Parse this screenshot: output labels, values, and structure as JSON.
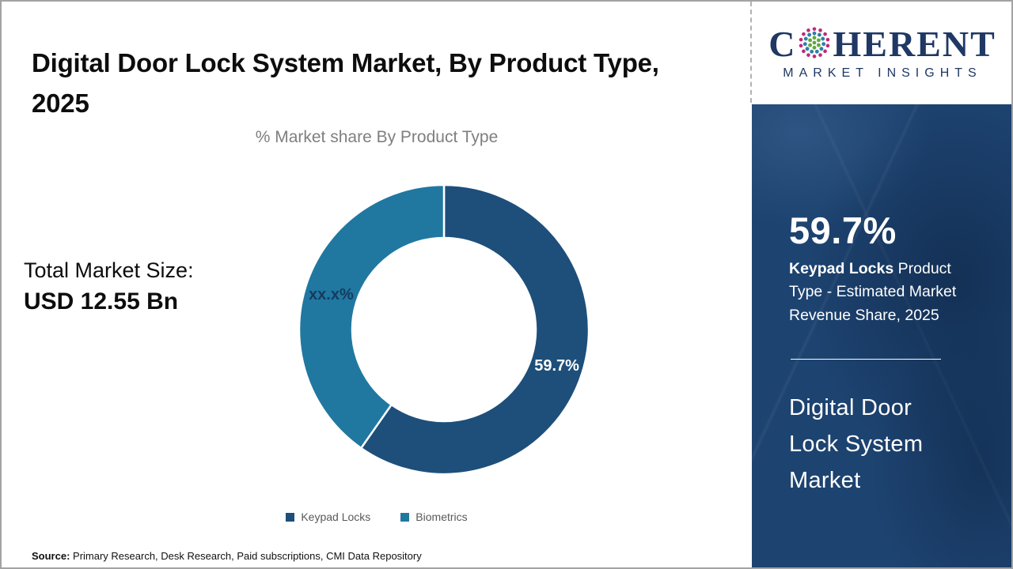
{
  "page": {
    "title": "Digital Door Lock System Market, By Product Type, 2025",
    "source_label": "Source:",
    "source_text": " Primary Research, Desk Research, Paid subscriptions, CMI Data Repository"
  },
  "logo": {
    "prefix": "C",
    "suffix": "HERENT",
    "subtitle": "MARKET INSIGHTS",
    "brand_color": "#1f3864",
    "globe_dot_colors": {
      "outer": "#bc2a78",
      "middle": "#2e7fa8",
      "inner": "#62a83c"
    }
  },
  "stats": {
    "market_size_label": "Total Market Size:",
    "market_size_value": "USD 12.55 Bn"
  },
  "chart_data": {
    "type": "pie",
    "donut": true,
    "title": "% Market share By Product Type",
    "categories": [
      "Keypad Locks",
      "Biometrics"
    ],
    "values": [
      59.7,
      40.3
    ],
    "value_labels": [
      "59.7%",
      "xx.x%"
    ],
    "colors": [
      "#1d4f7a",
      "#2078a1"
    ],
    "label_colors": [
      "#ffffff",
      "#173a5e"
    ],
    "legend_position": "bottom"
  },
  "sidebar": {
    "stat_value": "59.7%",
    "stat_desc_bold": "Keypad Locks",
    "stat_desc_rest": " Product Type - Estimated Market Revenue Share, 2025",
    "panel_title": "Digital Door Lock System Market",
    "panel_color": "#1d4370"
  }
}
